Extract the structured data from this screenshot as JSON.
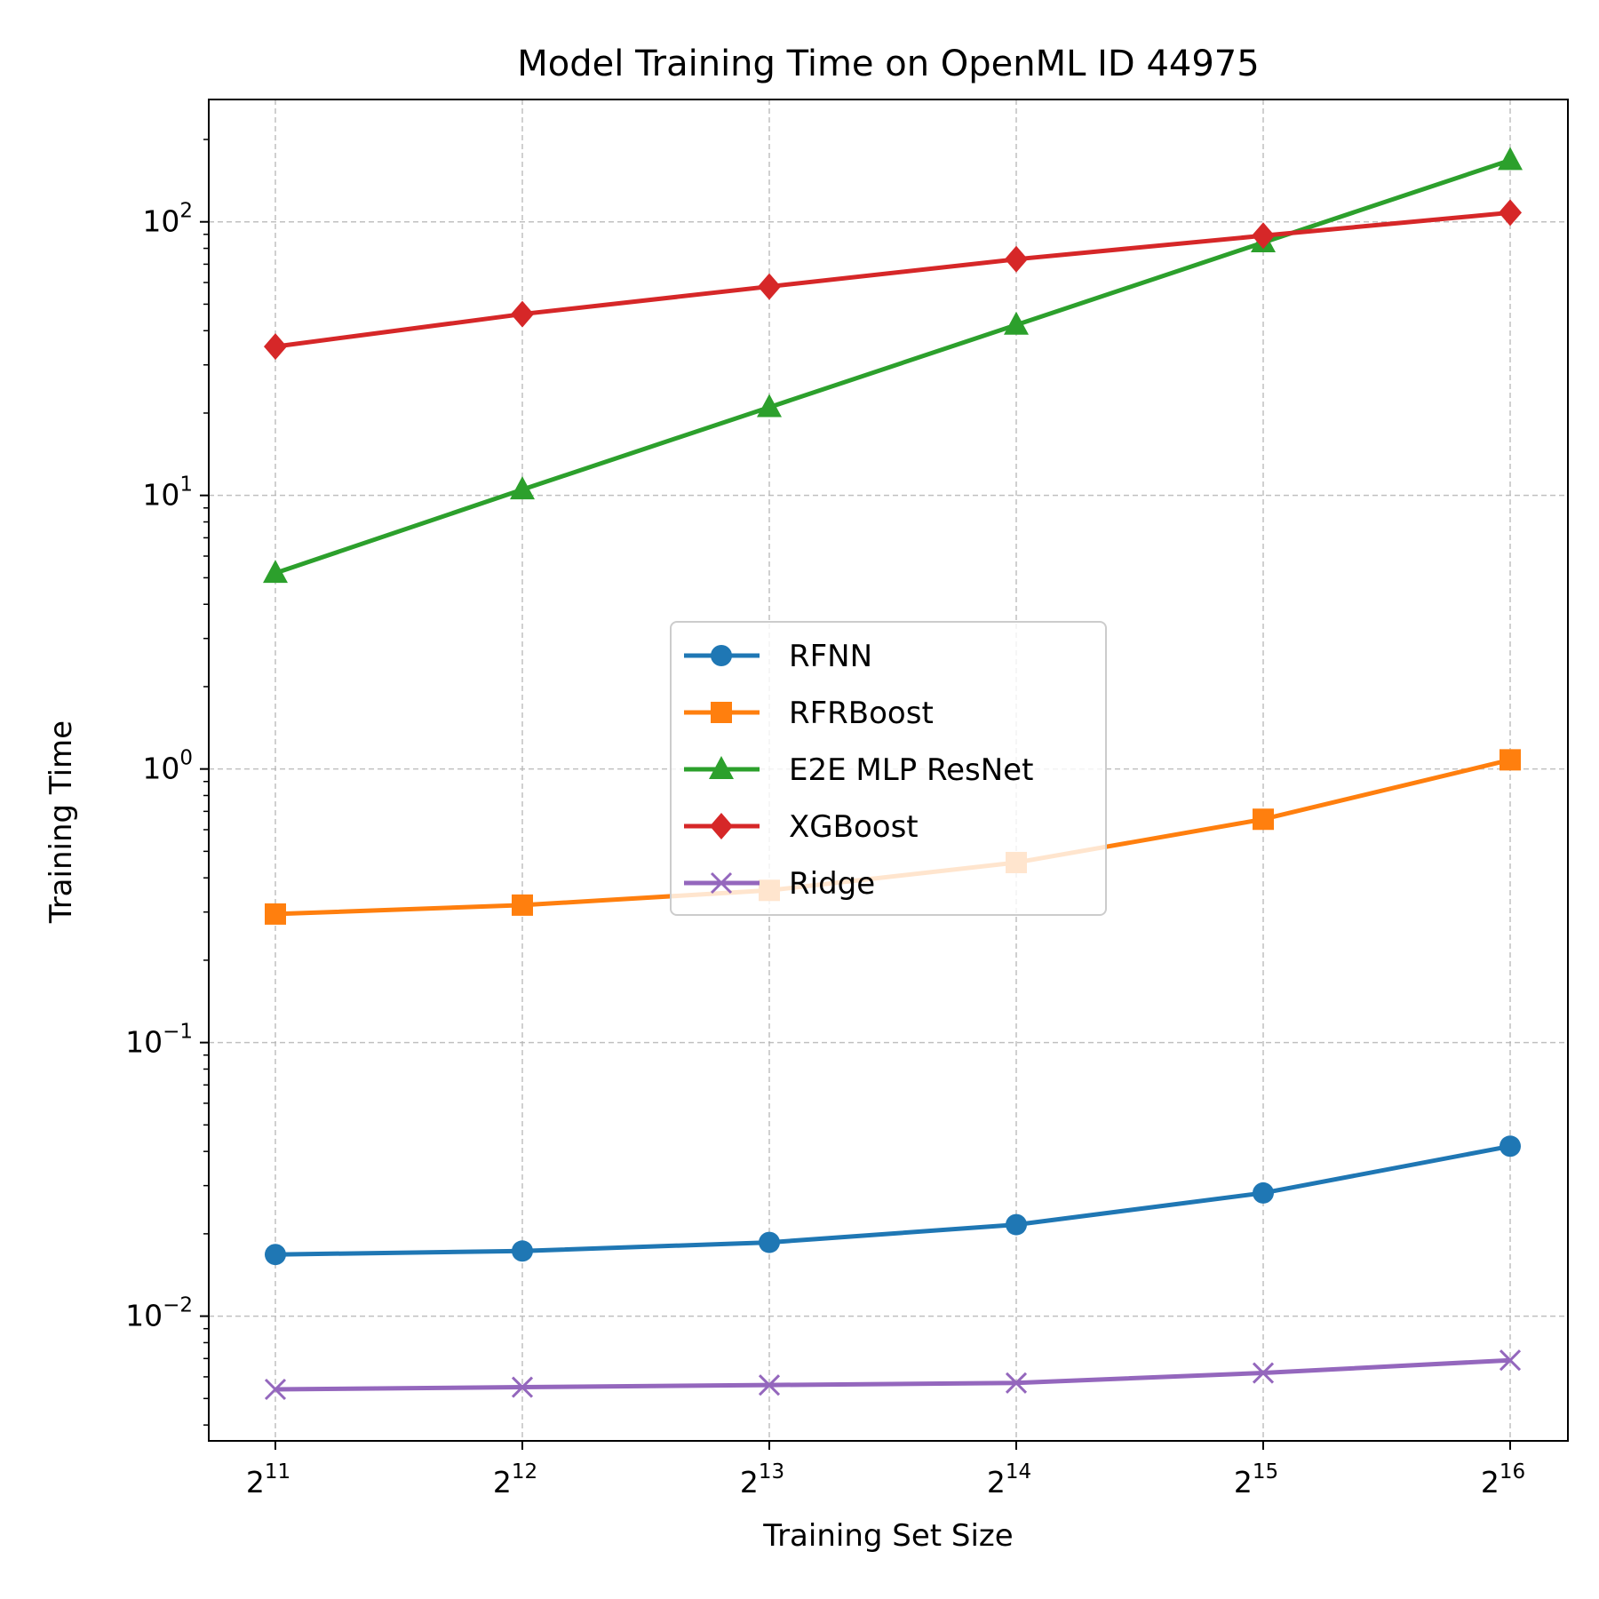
{
  "chart_data": {
    "type": "line",
    "title": "Model Training Time on OpenML ID 44975",
    "xlabel": "Training Set Size",
    "ylabel": "Training Time",
    "x_scale": "log2",
    "y_scale": "log10",
    "x": [
      2048,
      4096,
      8192,
      16384,
      32768,
      65536
    ],
    "x_tick_labels": [
      {
        "base": "2",
        "exp": "11"
      },
      {
        "base": "2",
        "exp": "12"
      },
      {
        "base": "2",
        "exp": "13"
      },
      {
        "base": "2",
        "exp": "14"
      },
      {
        "base": "2",
        "exp": "15"
      },
      {
        "base": "2",
        "exp": "16"
      }
    ],
    "y_tick_labels": [
      {
        "base": "10",
        "exp": "−2"
      },
      {
        "base": "10",
        "exp": "−1"
      },
      {
        "base": "10",
        "exp": "0"
      },
      {
        "base": "10",
        "exp": "1"
      },
      {
        "base": "10",
        "exp": "2"
      }
    ],
    "y_ticks": [
      0.01,
      0.1,
      1,
      10,
      100
    ],
    "ylim": [
      0.0035,
      280
    ],
    "grid": true,
    "legend_position": "center",
    "series": [
      {
        "name": "RFNN",
        "color": "#1f77b4",
        "marker": "circle",
        "values": [
          0.0168,
          0.0173,
          0.0186,
          0.0216,
          0.0282,
          0.0418
        ]
      },
      {
        "name": "RFRBoost",
        "color": "#ff7f0e",
        "marker": "square",
        "values": [
          0.295,
          0.318,
          0.36,
          0.455,
          0.655,
          1.08
        ]
      },
      {
        "name": "E2E MLP ResNet",
        "color": "#2ca02c",
        "marker": "triangle",
        "values": [
          5.2,
          10.5,
          21.0,
          42.0,
          84.0,
          168.0
        ]
      },
      {
        "name": "XGBoost",
        "color": "#d62728",
        "marker": "diamond",
        "values": [
          35.0,
          46.0,
          58.0,
          73.0,
          89.0,
          108.0
        ]
      },
      {
        "name": "Ridge",
        "color": "#9467bd",
        "marker": "x",
        "values": [
          0.0054,
          0.0055,
          0.0056,
          0.0057,
          0.0062,
          0.0069
        ]
      }
    ]
  }
}
